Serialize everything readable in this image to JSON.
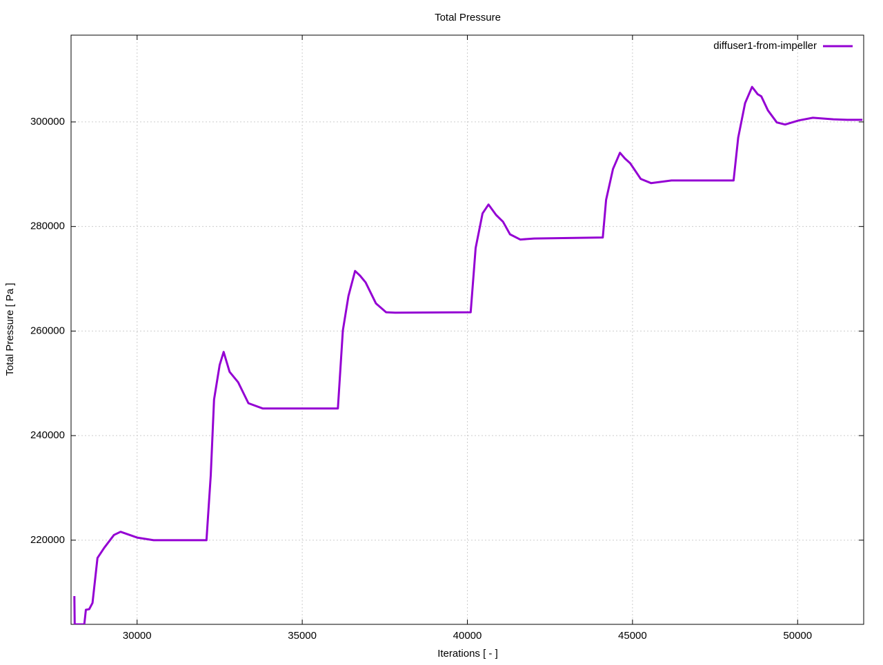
{
  "chart_data": {
    "type": "line",
    "title": "Total Pressure",
    "x_label": "Iterations [ - ]",
    "y_label": "Total Pressure [ Pa ]",
    "x": [
      28100,
      28110,
      28400,
      28450,
      28550,
      28650,
      28800,
      29000,
      29300,
      29500,
      30000,
      30500,
      32100,
      32230,
      32330,
      32500,
      32620,
      32800,
      33060,
      33370,
      33800,
      36080,
      36230,
      36400,
      36600,
      36750,
      36920,
      37230,
      37540,
      37810,
      40100,
      40250,
      40460,
      40640,
      40870,
      41080,
      41290,
      41600,
      42020,
      44100,
      44200,
      44410,
      44620,
      44770,
      44930,
      45250,
      45560,
      46180,
      48060,
      48200,
      48410,
      48620,
      48790,
      48900,
      49100,
      49370,
      49620,
      50040,
      50460,
      51080,
      51500,
      51960
    ],
    "series": [
      {
        "name": "diffuser1-from-impeller",
        "color": "#9400d3",
        "values": [
          209300,
          203900,
          203900,
          206700,
          206800,
          208000,
          216600,
          218500,
          221000,
          221600,
          220500,
          220000,
          220000,
          232400,
          246900,
          253500,
          256000,
          252200,
          250200,
          246200,
          245200,
          245200,
          260100,
          266700,
          271500,
          270600,
          269300,
          265300,
          263600,
          263500,
          263600,
          275900,
          282500,
          284200,
          282200,
          280900,
          278500,
          277500,
          277700,
          277900,
          285100,
          291000,
          294100,
          293000,
          292100,
          289100,
          288300,
          288800,
          288800,
          297000,
          303600,
          306700,
          305300,
          304900,
          302200,
          299900,
          299500,
          300300,
          300800,
          300500,
          300400,
          300400
        ]
      }
    ],
    "xlim": [
      28000,
      52000
    ],
    "ylim": [
      203900,
      316600
    ],
    "xticks": [
      30000,
      35000,
      40000,
      45000,
      50000
    ],
    "yticks": [
      220000,
      240000,
      260000,
      280000,
      300000
    ],
    "grid": true,
    "legend_position": "top-right"
  }
}
